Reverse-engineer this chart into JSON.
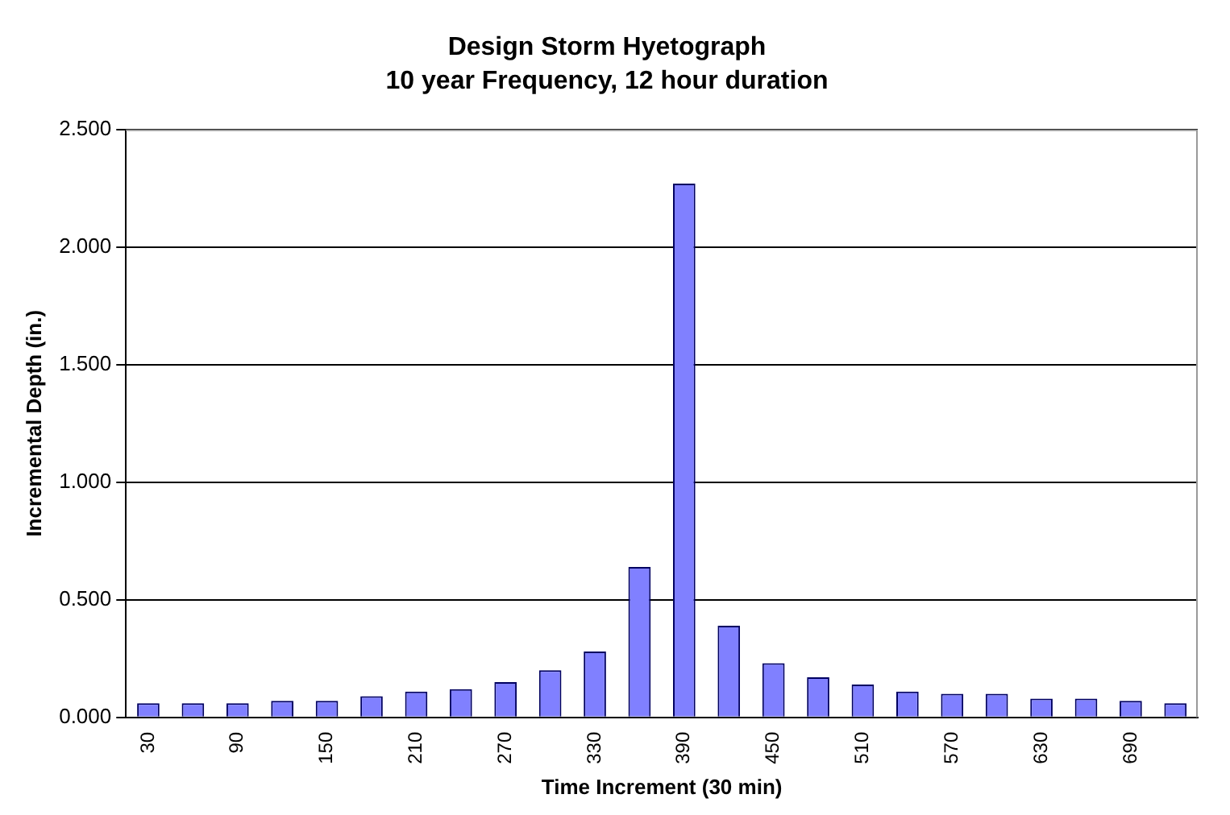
{
  "chart_data": {
    "type": "bar",
    "title": "Design Storm Hyetograph",
    "subtitle": "10 year Frequency, 12 hour duration",
    "xlabel": "Time Increment (30 min)",
    "ylabel": "Incremental Depth (in.)",
    "categories": [
      "30",
      null,
      "90",
      null,
      "150",
      null,
      "210",
      null,
      "270",
      null,
      "330",
      null,
      "390",
      null,
      "450",
      null,
      "510",
      null,
      "570",
      null,
      "630",
      null,
      "690",
      null
    ],
    "values": [
      0.06,
      0.06,
      0.06,
      0.07,
      0.07,
      0.09,
      0.11,
      0.12,
      0.15,
      0.2,
      0.28,
      0.64,
      2.27,
      0.39,
      0.23,
      0.17,
      0.14,
      0.11,
      0.1,
      0.1,
      0.08,
      0.08,
      0.07,
      0.06
    ],
    "color": "#8080ff",
    "ylim": [
      0,
      2.5
    ],
    "yticks": [
      {
        "value": 0,
        "label": "0.000"
      },
      {
        "value": 0.5,
        "label": "0.500"
      },
      {
        "value": 1,
        "label": "1.000"
      },
      {
        "value": 1.5,
        "label": "1.500"
      },
      {
        "value": 2,
        "label": "2.000"
      },
      {
        "value": 2.5,
        "label": "2.500"
      }
    ],
    "grid": "y"
  }
}
